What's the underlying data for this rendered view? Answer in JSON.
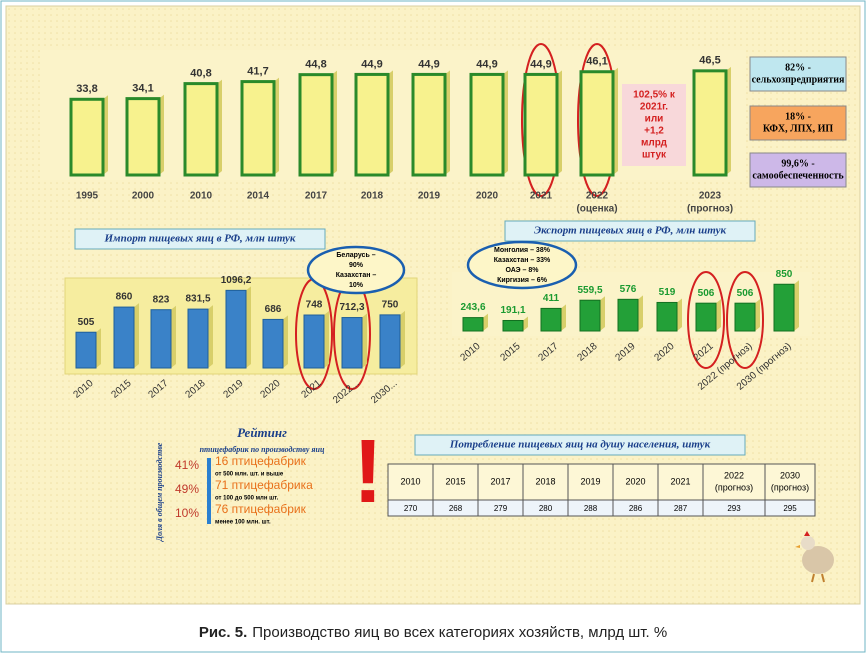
{
  "chart_data": [
    {
      "type": "bar",
      "categories": [
        "1995",
        "2000",
        "2010",
        "2014",
        "2017",
        "2018",
        "2019",
        "2020",
        "2021",
        "2022",
        "2023"
      ],
      "category_sublabels": [
        null,
        null,
        null,
        null,
        null,
        null,
        null,
        null,
        null,
        "(оценка)",
        "(прогноз)"
      ],
      "values": [
        33.8,
        34.1,
        40.8,
        41.7,
        44.8,
        44.9,
        44.9,
        44.9,
        44.9,
        46.1,
        46.5
      ],
      "value_labels": [
        "33,8",
        "34,1",
        "40,8",
        "41,7",
        "44,8",
        "44,9",
        "44,9",
        "44,9",
        "44,9",
        "46,1",
        "46,5"
      ],
      "color": "#f7f28e",
      "ylim": [
        0,
        50
      ]
    },
    {
      "type": "bar",
      "title": "Импорт пищевых яиц в РФ, млн штук",
      "categories": [
        "2010",
        "2015",
        "2017",
        "2018",
        "2019",
        "2020",
        "2021",
        "2022...",
        "2030..."
      ],
      "values": [
        505,
        860,
        823,
        831.5,
        1096.2,
        686,
        748,
        712.3,
        750
      ],
      "value_labels": [
        "505",
        "860",
        "823",
        "831,5",
        "1096,2",
        "686",
        "748",
        "712,3",
        "750"
      ],
      "color": "#3a82c8",
      "ylim": [
        0,
        1200
      ],
      "bubble": [
        "Беларусь –",
        "90%",
        "Казахстан –",
        "10%"
      ]
    },
    {
      "type": "bar",
      "title": "Экспорт пищевых яиц в РФ, млн штук",
      "categories": [
        "2010",
        "2015",
        "2017",
        "2018",
        "2019",
        "2020",
        "2021",
        "2022 (прогноз)",
        "2030 (прогноз)"
      ],
      "values": [
        243.6,
        191.1,
        411,
        559.5,
        576,
        519,
        506,
        506,
        850
      ],
      "value_labels": [
        "243,6",
        "191,1",
        "411",
        "559,5",
        "576",
        "519",
        "506",
        "506",
        "850"
      ],
      "color": "#23a038",
      "ylim": [
        0,
        1000
      ],
      "bubble": [
        "Монголия – 38%",
        "Казахстан – 33%",
        "ОАЭ – 8%",
        "Киргизия – 6%"
      ]
    }
  ],
  "annotation": [
    "102,5% к",
    "2021г.",
    "или",
    "+1,2",
    "млрд",
    "штук"
  ],
  "side_boxes": [
    [
      "82% -",
      "сельхозпредприятия"
    ],
    [
      "18% -",
      "КФХ, ЛПХ, ИП"
    ],
    [
      "99,6% -",
      "самообеспеченность"
    ]
  ],
  "rating": {
    "title": "Рейтинг",
    "subtitle": "птицефабрик по производству яиц",
    "axis_label": "Доля в общем производстве",
    "rows": [
      {
        "share": "41%",
        "label": "16 птицефабрик",
        "note": "от 500 млн. шт. и выше"
      },
      {
        "share": "49%",
        "label": "71 птицефабрика",
        "note": "от 100 до 500 млн шт."
      },
      {
        "share": "10%",
        "label": "76 птицефабрик",
        "note": "менее 100 млн. шт."
      }
    ]
  },
  "mark": "!",
  "consumption_table": {
    "title": "Потребление пищевых яиц на душу населения, штук",
    "headers": [
      [
        "2010"
      ],
      [
        "2015"
      ],
      [
        "2017"
      ],
      [
        "2018"
      ],
      [
        "2019"
      ],
      [
        "2020"
      ],
      [
        "2021"
      ],
      [
        "2022",
        "(прогноз)"
      ],
      [
        "2030",
        "(прогноз)"
      ]
    ],
    "values": [
      "270",
      "268",
      "279",
      "280",
      "288",
      "286",
      "287",
      "293",
      "295"
    ]
  },
  "caption": {
    "label": "Рис. 5.",
    "text": "Производство яиц во всех категориях хозяйств, млрд шт. %"
  }
}
